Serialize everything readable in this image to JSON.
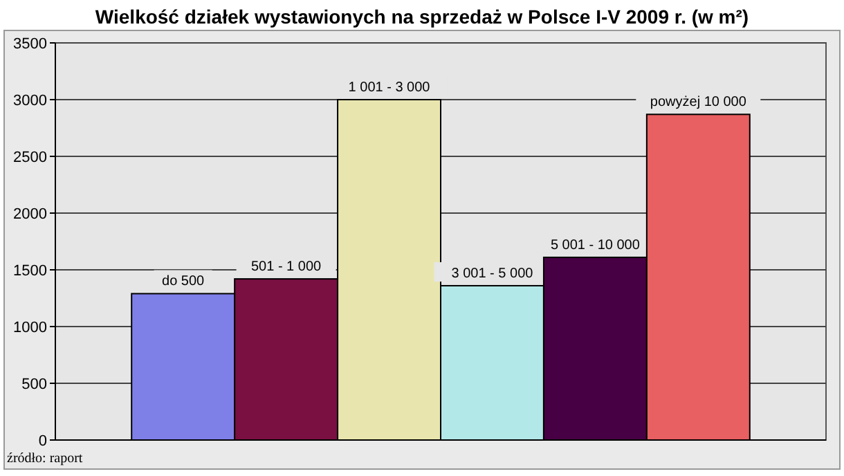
{
  "chart_data": {
    "type": "bar",
    "title": "Wielkość działek wystawionych na sprzedaż w Polsce  I-V 2009 r. (w m²)",
    "categories": [
      "do 500",
      "501 - 1 000",
      "1 001 - 3 000",
      "3 001 - 5 000",
      "5 001 - 10 000",
      "powyżej 10 000"
    ],
    "values": [
      1290,
      1420,
      3000,
      1360,
      1610,
      2870
    ],
    "colors": [
      "#7f7fe8",
      "#7a0f42",
      "#e8e6ae",
      "#b3e8e8",
      "#480044",
      "#e86062"
    ],
    "ylim": [
      0,
      3500
    ],
    "yticks": [
      0,
      500,
      1000,
      1500,
      2000,
      2500,
      3000,
      3500
    ],
    "grid": "y",
    "annotations": [
      "źródło: raport"
    ]
  }
}
